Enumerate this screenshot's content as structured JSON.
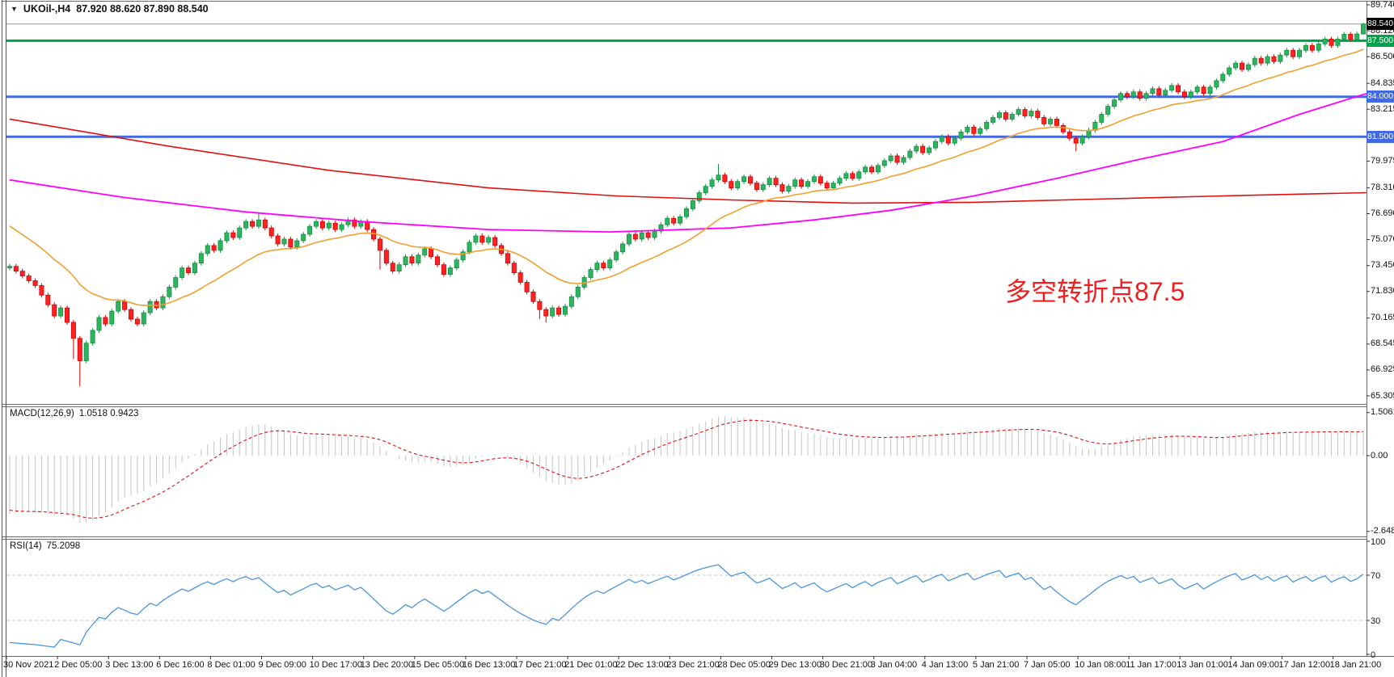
{
  "header": {
    "dropdown_icon": "▼",
    "symbol": "UKOil-,H4",
    "ohlc": "87.920 88.620 87.890 88.540"
  },
  "macd_panel": {
    "title": "MACD(12,26,9)",
    "values": "1.0518 0.9423"
  },
  "rsi_panel": {
    "title": "RSI(14)",
    "values": "75.2098"
  },
  "annotation": {
    "text": "多空转折点87.5",
    "color": "#f01e1e"
  },
  "colors": {
    "bull": "#2fb35f",
    "bull_border": "#149045",
    "bear": "#ff2222",
    "bear_border": "#d40000",
    "ma_red": "#e01010",
    "ma_magenta": "#ff00ff",
    "ma_orange": "#f0a030",
    "green_line": "#00a24a",
    "blue_line": "#4169e1",
    "current_line": "#9a9a9a",
    "badge_current_bg": "#000000",
    "macd_hist": "#c4c4c4",
    "macd_signal": "#e01010",
    "rsi_line": "#4a96dc",
    "level_dash": "#c9c9c9",
    "border": "#6a6a6a",
    "tick": "#333333"
  },
  "price_lines": [
    {
      "text": "88.540",
      "value": 88.54,
      "kind": "current"
    },
    {
      "text": "87.500",
      "value": 87.5,
      "kind": "green"
    },
    {
      "text": "84.000",
      "value": 84.0,
      "kind": "blue"
    },
    {
      "text": "81.500",
      "value": 81.5,
      "kind": "blue"
    }
  ],
  "chart_data": {
    "type": "candlestick",
    "symbol": "UKOil-",
    "timeframe": "H4",
    "ohlc_display": {
      "open": "87.920",
      "high": "88.620",
      "low": "87.890",
      "close": "88.540"
    },
    "y_ticks": [
      89.74,
      88.12,
      86.5,
      84.835,
      83.215,
      79.975,
      78.31,
      76.69,
      75.07,
      73.45,
      71.83,
      70.165,
      68.545,
      66.925,
      65.305
    ],
    "hlines": [
      87.5,
      84.0,
      81.5
    ],
    "current_price": 88.54,
    "warmup_closes": [
      82.0,
      81.6,
      81.2,
      80.7,
      80.1,
      79.4,
      78.6,
      77.7,
      76.8,
      75.9,
      75.2,
      74.6,
      74.9,
      74.3,
      73.8,
      74.1,
      73.6,
      73.9,
      73.5,
      73.3
    ],
    "closes": [
      73.4,
      73.1,
      72.8,
      72.5,
      72.2,
      71.6,
      71.0,
      70.3,
      70.8,
      69.9,
      68.9,
      67.5,
      68.6,
      69.4,
      70.2,
      69.8,
      70.6,
      71.2,
      70.7,
      70.1,
      69.8,
      70.5,
      71.2,
      70.8,
      71.5,
      72.1,
      72.7,
      73.3,
      73.0,
      73.6,
      74.2,
      74.7,
      74.4,
      75.0,
      75.5,
      75.2,
      75.8,
      76.2,
      75.9,
      76.3,
      75.8,
      75.3,
      74.8,
      75.1,
      74.6,
      75.0,
      75.4,
      75.9,
      76.2,
      75.8,
      76.1,
      75.7,
      76.0,
      76.3,
      75.9,
      76.2,
      75.7,
      75.1,
      74.4,
      73.6,
      73.1,
      73.5,
      74.0,
      73.6,
      74.1,
      74.5,
      74.0,
      73.5,
      72.9,
      73.3,
      73.8,
      74.3,
      74.9,
      75.3,
      74.9,
      75.2,
      74.7,
      74.2,
      73.6,
      73.0,
      72.4,
      71.8,
      71.2,
      70.7,
      70.3,
      70.8,
      70.4,
      70.9,
      71.5,
      72.1,
      72.7,
      73.2,
      73.6,
      73.3,
      73.8,
      74.3,
      74.8,
      75.4,
      75.1,
      75.5,
      75.2,
      75.6,
      76.0,
      76.4,
      76.1,
      76.5,
      77.0,
      77.5,
      78.0,
      78.4,
      78.8,
      79.1,
      78.7,
      78.3,
      78.7,
      79.0,
      78.6,
      78.2,
      78.5,
      78.9,
      78.5,
      78.1,
      78.4,
      78.8,
      78.4,
      78.7,
      79.0,
      78.6,
      78.3,
      78.6,
      78.9,
      79.2,
      78.9,
      79.3,
      79.6,
      79.3,
      79.7,
      80.0,
      80.3,
      79.9,
      80.2,
      80.6,
      80.9,
      80.5,
      80.8,
      81.2,
      81.5,
      81.1,
      81.4,
      81.8,
      82.1,
      81.7,
      82.0,
      82.4,
      82.7,
      83.0,
      82.6,
      82.9,
      83.2,
      82.8,
      83.1,
      82.7,
      82.3,
      82.6,
      82.2,
      81.8,
      81.4,
      81.1,
      81.5,
      81.9,
      82.4,
      82.9,
      83.4,
      83.8,
      84.2,
      84.0,
      84.3,
      83.9,
      84.2,
      84.5,
      84.1,
      84.4,
      84.7,
      84.3,
      84.0,
      84.3,
      84.6,
      84.2,
      84.6,
      85.0,
      85.4,
      85.8,
      86.1,
      85.7,
      86.0,
      86.4,
      86.1,
      86.5,
      86.2,
      86.6,
      86.9,
      86.5,
      86.9,
      87.2,
      86.9,
      87.3,
      87.6,
      87.2,
      87.6,
      87.9,
      87.6,
      87.92,
      88.54
    ],
    "wick_overrides": {
      "10": {
        "l": 67.6
      },
      "11": {
        "l": 65.9
      },
      "39": {
        "h": 76.75
      },
      "58": {
        "l": 73.2
      },
      "83": {
        "l": 70.1
      },
      "84": {
        "l": 69.9
      },
      "111": {
        "h": 79.8
      },
      "167": {
        "l": 80.6
      },
      "212": {
        "h": 88.62,
        "l": 87.89
      }
    },
    "ma_red": [
      [
        0,
        82.6
      ],
      [
        25,
        80.9
      ],
      [
        50,
        79.4
      ],
      [
        75,
        78.3
      ],
      [
        95,
        77.8
      ],
      [
        113,
        77.55
      ],
      [
        132,
        77.35
      ],
      [
        151,
        77.4
      ],
      [
        170,
        77.6
      ],
      [
        190,
        77.8
      ],
      [
        213,
        78.0
      ]
    ],
    "ma_magenta": [
      [
        0,
        78.8
      ],
      [
        18,
        77.7
      ],
      [
        37,
        76.8
      ],
      [
        55,
        76.2
      ],
      [
        75,
        75.7
      ],
      [
        94,
        75.55
      ],
      [
        113,
        75.8
      ],
      [
        126,
        76.3
      ],
      [
        138,
        76.9
      ],
      [
        151,
        77.8
      ],
      [
        164,
        78.9
      ],
      [
        176,
        80.0
      ],
      [
        190,
        81.2
      ],
      [
        202,
        82.9
      ],
      [
        213,
        84.2
      ]
    ],
    "orange_period": 20,
    "macd": {
      "params": [
        12,
        26,
        9
      ],
      "display": [
        1.0518,
        0.9423
      ],
      "axis": [
        [
          "1.5061",
          1.5061
        ],
        [
          "0.00",
          0
        ],
        [
          "-2.6487",
          -2.6487
        ]
      ]
    },
    "rsi": {
      "period": 14,
      "display": 75.2098,
      "levels": [
        70,
        30
      ],
      "axis": [
        [
          "100",
          100
        ],
        [
          "70",
          70
        ],
        [
          "30",
          30
        ],
        [
          "0",
          0
        ]
      ]
    },
    "time_labels": [
      "30 Nov 2021",
      "2 Dec 05:00",
      "3 Dec 13:00",
      "6 Dec 16:00",
      "8 Dec 01:00",
      "9 Dec 09:00",
      "10 Dec 17:00",
      "13 Dec 20:00",
      "15 Dec 05:00",
      "16 Dec 13:00",
      "17 Dec 21:00",
      "21 Dec 01:00",
      "22 Dec 13:00",
      "23 Dec 21:00",
      "28 Dec 05:00",
      "29 Dec 13:00",
      "30 Dec 21:00",
      "3 Jan 04:00",
      "4 Jan 13:00",
      "5 Jan 21:00",
      "7 Jan 05:00",
      "10 Jan 08:00",
      "11 Jan 17:00",
      "13 Jan 01:00",
      "14 Jan 09:00",
      "17 Jan 12:00",
      "18 Jan 21:00"
    ]
  }
}
